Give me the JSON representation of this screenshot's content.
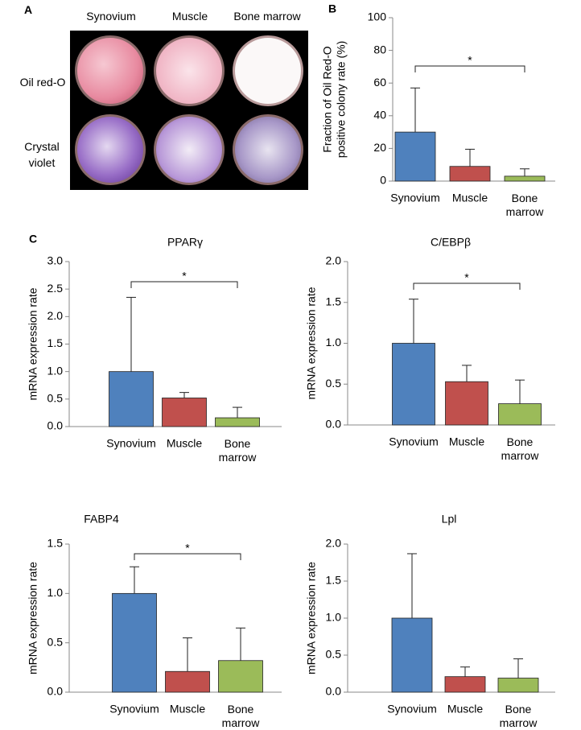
{
  "panel_a": {
    "label": "A",
    "columns": [
      "Synovium",
      "Muscle",
      "Bone marrow"
    ],
    "rows": [
      "Oil red-O",
      "Crystal violet"
    ]
  },
  "chart_data": [
    {
      "type": "bar",
      "panel_label": "B",
      "y_label": [
        "Fraction of Oil Red-O",
        "positive colony rate (%)"
      ],
      "categories": [
        "Synovium",
        "Muscle",
        "Bone marrow"
      ],
      "values": [
        30,
        9,
        3
      ],
      "errors": [
        27,
        10.5,
        4.5
      ],
      "colors": [
        "#4f81bd",
        "#c0504d",
        "#9bbb59"
      ],
      "ylim": [
        0,
        100
      ],
      "yticks": [
        0,
        20,
        40,
        60,
        80,
        100
      ],
      "significance": {
        "from": 0,
        "to": 2,
        "label": "*"
      }
    },
    {
      "type": "bar",
      "panel_label": "C",
      "title": "PPARγ",
      "y_label": "mRNA expression rate",
      "categories": [
        "Synovium",
        "Muscle",
        "Bone marrow"
      ],
      "values": [
        1.0,
        0.52,
        0.16
      ],
      "errors": [
        1.35,
        0.1,
        0.19
      ],
      "colors": [
        "#4f81bd",
        "#c0504d",
        "#9bbb59"
      ],
      "ylim": [
        0,
        3
      ],
      "yticks": [
        {
          "value": 0,
          "label": "0.0"
        },
        {
          "value": 0.5,
          "label": "0.5"
        },
        {
          "value": 1,
          "label": "1.0"
        },
        {
          "value": 1.5,
          "label": "1.5"
        },
        {
          "value": 2,
          "label": "2.0"
        },
        {
          "value": 2.5,
          "label": "2.5"
        },
        {
          "value": 3,
          "label": "3.0"
        }
      ],
      "significance": {
        "from": 0,
        "to": 2,
        "label": "*"
      }
    },
    {
      "type": "bar",
      "title": "C/EBPβ",
      "y_label": "mRNA expression rate",
      "categories": [
        "Synovium",
        "Muscle",
        "Bone marrow"
      ],
      "values": [
        1.0,
        0.53,
        0.26
      ],
      "errors": [
        0.54,
        0.2,
        0.29
      ],
      "colors": [
        "#4f81bd",
        "#c0504d",
        "#9bbb59"
      ],
      "ylim": [
        0,
        2
      ],
      "yticks": [
        {
          "value": 0,
          "label": "0.0"
        },
        {
          "value": 0.5,
          "label": "0.5"
        },
        {
          "value": 1,
          "label": "1.0"
        },
        {
          "value": 1.5,
          "label": "1.5"
        },
        {
          "value": 2,
          "label": "2.0"
        }
      ],
      "significance": {
        "from": 0,
        "to": 2,
        "label": "*"
      }
    },
    {
      "type": "bar",
      "title": "FABP4",
      "y_label": "mRNA expression rate",
      "categories": [
        "Synovium",
        "Muscle",
        "Bone marrow"
      ],
      "values": [
        1.0,
        0.21,
        0.32
      ],
      "errors": [
        0.27,
        0.34,
        0.33
      ],
      "colors": [
        "#4f81bd",
        "#c0504d",
        "#9bbb59"
      ],
      "ylim": [
        0,
        1.5
      ],
      "yticks": [
        {
          "value": 0,
          "label": "0.0"
        },
        {
          "value": 0.5,
          "label": "0.5"
        },
        {
          "value": 1,
          "label": "1.0"
        },
        {
          "value": 1.5,
          "label": "1.5"
        }
      ],
      "significance": {
        "from": 0,
        "to": 2,
        "label": "*"
      }
    },
    {
      "type": "bar",
      "title": "Lpl",
      "y_label": "mRNA expression rate",
      "categories": [
        "Synovium",
        "Muscle",
        "Bone marrow"
      ],
      "values": [
        1.0,
        0.21,
        0.19
      ],
      "errors": [
        0.87,
        0.13,
        0.26
      ],
      "colors": [
        "#4f81bd",
        "#c0504d",
        "#9bbb59"
      ],
      "ylim": [
        0,
        2
      ],
      "yticks": [
        {
          "value": 0,
          "label": "0.0"
        },
        {
          "value": 0.5,
          "label": "0.5"
        },
        {
          "value": 1,
          "label": "1.0"
        },
        {
          "value": 1.5,
          "label": "1.5"
        },
        {
          "value": 2,
          "label": "2.0"
        }
      ]
    }
  ]
}
